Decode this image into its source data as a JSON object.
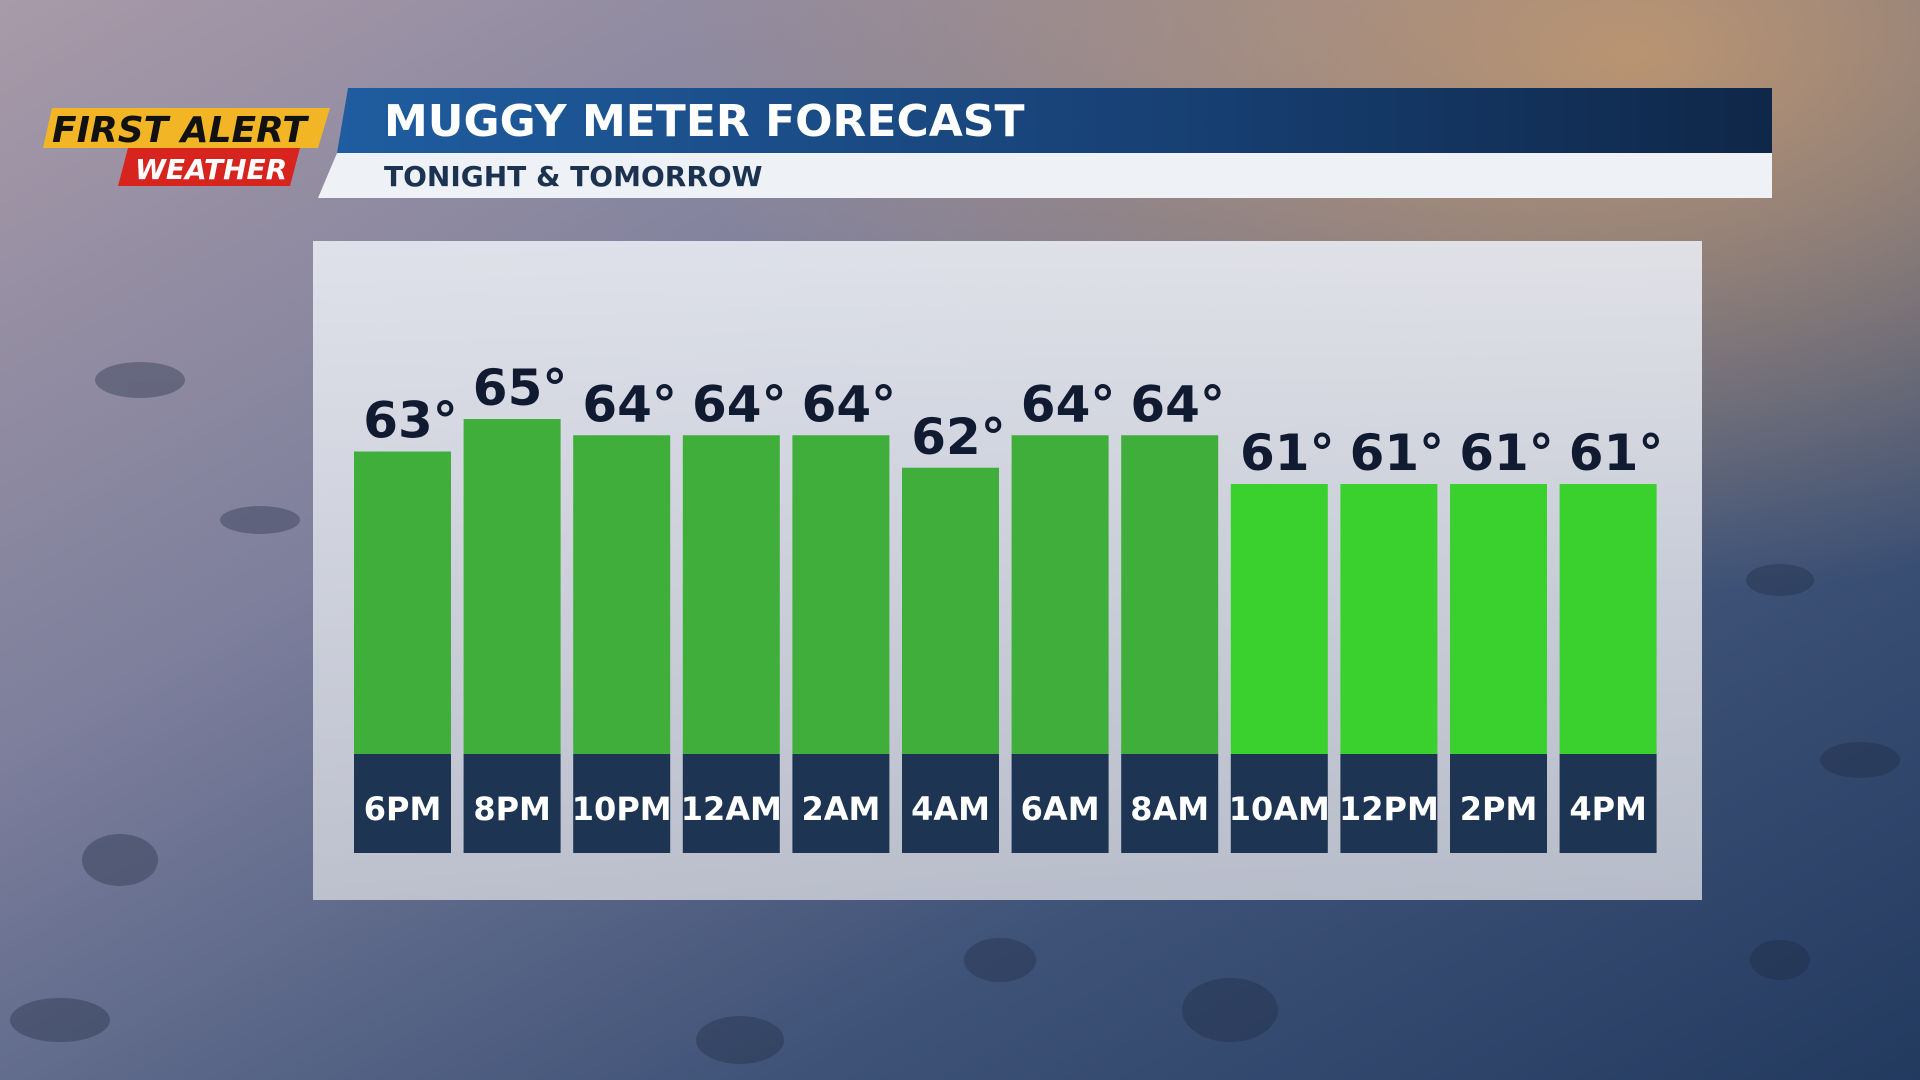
{
  "logo": {
    "line1": "FIRST ALERT",
    "line2": "WEATHER"
  },
  "chart_data": {
    "type": "bar",
    "title": "MUGGY METER FORECAST",
    "subtitle": "TONIGHT & TOMORROW",
    "categories": [
      "6PM",
      "8PM",
      "10PM",
      "12AM",
      "2AM",
      "4AM",
      "6AM",
      "8AM",
      "10AM",
      "12PM",
      "2PM",
      "4PM"
    ],
    "values": [
      63,
      65,
      64,
      64,
      64,
      62,
      64,
      64,
      61,
      61,
      61,
      61
    ],
    "value_labels": [
      "63°",
      "65°",
      "64°",
      "64°",
      "64°",
      "62°",
      "64°",
      "64°",
      "61°",
      "61°",
      "61°",
      "61°"
    ],
    "colors": [
      "#3fae3a",
      "#3fae3a",
      "#3fae3a",
      "#3fae3a",
      "#3fae3a",
      "#3fae3a",
      "#3fae3a",
      "#3fae3a",
      "#3ad12e",
      "#3ad12e",
      "#3ad12e",
      "#3ad12e"
    ]
  }
}
